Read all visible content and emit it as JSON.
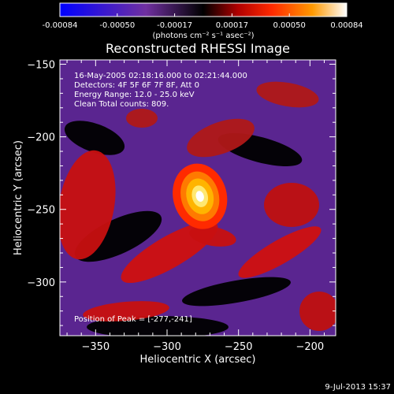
{
  "colorbar": {
    "tick_labels": [
      "-0.00084",
      "-0.00050",
      "-0.00017",
      "0.00017",
      "0.00050",
      "0.00084"
    ],
    "range": [
      -0.00084,
      0.00084
    ],
    "units_label": "(photons cm⁻² s⁻¹ asec⁻²)"
  },
  "date_stamp": "9-Jul-2013 15:37",
  "chart_data": {
    "type": "heatmap",
    "title": "Reconstructed RHESSI Image",
    "xlabel": "Heliocentric X (arcsec)",
    "ylabel": "Heliocentric Y (arcsec)",
    "xlim": [
      -375,
      -182
    ],
    "ylim": [
      -337,
      -147
    ],
    "x_ticks": [
      -350,
      -300,
      -250,
      -200
    ],
    "y_ticks": [
      -300,
      -250,
      -200,
      -150
    ],
    "x_tick_labels": [
      "−350",
      "−300",
      "−250",
      "−200"
    ],
    "y_tick_labels": [
      "−300",
      "−250",
      "−200",
      "−150"
    ],
    "colormap": [
      "#0000ff",
      "#7030a0",
      "#000000",
      "#b00000",
      "#ff2a00",
      "#ff9900",
      "#ffffff"
    ],
    "annotations": [
      "16-May-2005 02:18:16.000 to 02:21:44.000",
      "Detectors: 4F 5F 6F 7F 8F, Att 0",
      "Energy Range: 12.0 - 25.0 keV",
      "Clean    Total counts: 809."
    ],
    "peak_label": "Position of Peak = [-277,-241]",
    "peak": {
      "x": -277,
      "y": -241
    }
  }
}
